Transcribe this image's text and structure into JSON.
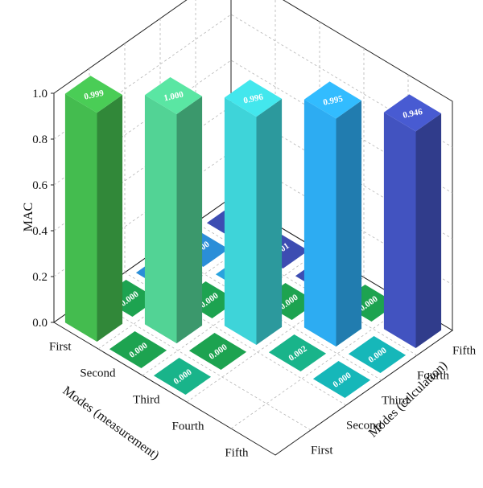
{
  "chart_data": {
    "type": "bar3d",
    "title": "",
    "zlabel": "MAC",
    "xlabel": "Modes (measurement)",
    "ylabel": "Modes (calculation)",
    "zlim": [
      0,
      1.0
    ],
    "zticks": [
      "0.0",
      "0.2",
      "0.4",
      "0.6",
      "0.8",
      "1.0"
    ],
    "measurement_modes": [
      "First",
      "Second",
      "Third",
      "Fourth",
      "Fifth"
    ],
    "calculation_modes": [
      "First",
      "Second",
      "Third",
      "Fourth",
      "Fifth"
    ],
    "diagonal": [
      {
        "measurement": "First",
        "calculation": "First",
        "value": 0.999,
        "label": "0.999",
        "color": "#3fae49"
      },
      {
        "measurement": "Second",
        "calculation": "Second",
        "value": 1.0,
        "label": "1.000",
        "color": "#4cc38a"
      },
      {
        "measurement": "Third",
        "calculation": "Third",
        "value": 0.996,
        "label": "0.996",
        "color": "#39c4c9"
      },
      {
        "measurement": "Fourth",
        "calculation": "Fourth",
        "value": 0.995,
        "label": "0.995",
        "color": "#2a9fe0"
      },
      {
        "measurement": "Fifth",
        "calculation": "Fifth",
        "value": 0.946,
        "label": "0.946",
        "color": "#3d4db2"
      }
    ],
    "off_diagonal_visible": [
      {
        "label": "0.000",
        "color": "#1da350"
      },
      {
        "label": "0.000",
        "color": "#1da350"
      },
      {
        "label": "0.000",
        "color": "#1da350"
      },
      {
        "label": "0.000",
        "color": "#1da350"
      },
      {
        "label": "0.000",
        "color": "#1da350"
      },
      {
        "label": "0.000",
        "color": "#1da350"
      },
      {
        "label": "0.000",
        "color": "#19b48a"
      },
      {
        "label": "0.000",
        "color": "#19b48a"
      },
      {
        "label": "0.002",
        "color": "#19b48a"
      },
      {
        "label": "0.000",
        "color": "#16b7b9"
      },
      {
        "label": "0.001",
        "color": "#16b7b9"
      },
      {
        "label": "0.000",
        "color": "#16b7b9"
      },
      {
        "label": "0.001",
        "color": "#2a8ed8"
      },
      {
        "label": "0.000",
        "color": "#2a8ed8"
      },
      {
        "label": "0.000",
        "color": "#2aa3de"
      },
      {
        "label": "0.001",
        "color": "#3d4db2"
      },
      {
        "label": "0.001",
        "color": "#3d4db2"
      },
      {
        "label": "014",
        "color": "#3d4db2"
      }
    ]
  }
}
